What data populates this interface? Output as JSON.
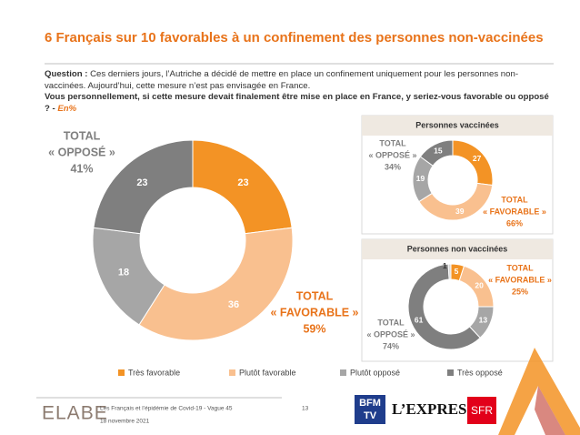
{
  "header": {
    "title": "6 Français sur 10 favorables à un confinement des personnes non-vaccinées"
  },
  "question": {
    "label": "Question :",
    "text": "Ces derniers jours, l’Autriche a décidé de mettre en place un confinement uniquement pour les personnes non-vaccinées. Aujourd’hui, cette mesure n’est pas envisagée en France.",
    "ask": "Vous personnellement, si cette mesure devait finalement être mise en place en France, y seriez-vous favorable ou opposé ? -",
    "unit": "En%"
  },
  "chart_data": [
    {
      "type": "donut",
      "categories": [
        "Très favorable",
        "Plutôt favorable",
        "Plutôt opposé",
        "Très opposé"
      ],
      "values": [
        23,
        36,
        18,
        23
      ],
      "colors": [
        "#f39325",
        "#f9c08f",
        "#a6a6a6",
        "#7f7f7f"
      ],
      "annotations": [
        {
          "lines": [
            "TOTAL",
            "« OPPOSÉ »",
            "41%"
          ],
          "color": "#7f7f7f"
        },
        {
          "lines": [
            "TOTAL",
            "« FAVORABLE »",
            "59%"
          ],
          "color": "#e8731a"
        }
      ]
    },
    {
      "type": "donut",
      "title": "Personnes vaccinées",
      "categories": [
        "Très favorable",
        "Plutôt favorable",
        "Plutôt opposé",
        "Très opposé"
      ],
      "values": [
        27,
        39,
        19,
        15
      ],
      "colors": [
        "#f39325",
        "#f9c08f",
        "#a6a6a6",
        "#7f7f7f"
      ],
      "annotations": [
        {
          "lines": [
            "TOTAL",
            "« OPPOSÉ »",
            "34%"
          ],
          "color": "#7f7f7f"
        },
        {
          "lines": [
            "TOTAL",
            "« FAVORABLE »",
            "66%"
          ],
          "color": "#e8731a"
        }
      ]
    },
    {
      "type": "donut",
      "title": "Personnes non vaccinées",
      "categories": [
        "Très favorable",
        "Plutôt favorable",
        "Plutôt opposé",
        "Très opposé",
        null
      ],
      "values": [
        5,
        20,
        13,
        61,
        1
      ],
      "colors": [
        "#f39325",
        "#f9c08f",
        "#a6a6a6",
        "#7f7f7f",
        "#d9d9d9"
      ],
      "annotations": [
        {
          "lines": [
            "TOTAL",
            "« FAVORABLE »",
            "25%"
          ],
          "color": "#e8731a"
        },
        {
          "lines": [
            "TOTAL",
            "« OPPOSÉ »",
            "74%"
          ],
          "color": "#7f7f7f"
        }
      ]
    }
  ],
  "footer": {
    "brand": "ELABE",
    "source": "Les Français et l’épidémie de Covid-19 - Vague 45",
    "date": "18 novembre 2021",
    "page": "13",
    "logos": [
      "BFM",
      "TV",
      "L’EXPRESS",
      "SFR"
    ]
  }
}
